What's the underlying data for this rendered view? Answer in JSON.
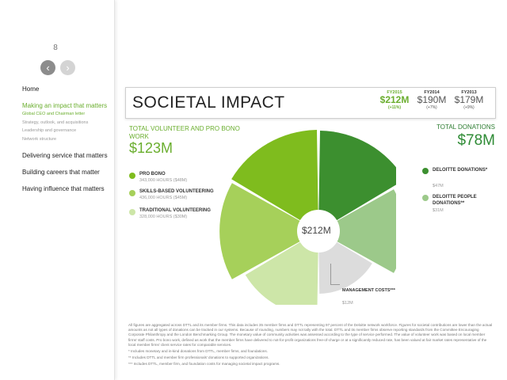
{
  "sidebar": {
    "page_number": "8",
    "prev_icon": "chevron-left-icon",
    "next_icon": "chevron-right-icon",
    "nav": {
      "home": "Home",
      "making_impact": "Making an impact that matters",
      "sub_items": [
        "Global CEO and Chairman letter",
        "Strategy, outlook, and acquisitions",
        "Leadership and governance",
        "Network structure"
      ],
      "delivering": "Delivering service that matters",
      "building": "Building careers that matter",
      "having": "Having influence that matters"
    }
  },
  "header": {
    "title": "SOCIETAL IMPACT",
    "years": [
      {
        "label": "FY2015",
        "value": "$212M",
        "change": "(+11%)"
      },
      {
        "label": "FY2014",
        "value": "$190M",
        "change": "(+7%)"
      },
      {
        "label": "FY2013",
        "value": "$179M",
        "change": "(+9%)"
      }
    ]
  },
  "volunteer": {
    "title": "TOTAL VOLUNTEER AND PRO BONO WORK",
    "amount": "$123M",
    "items": [
      {
        "name": "PRO BONO",
        "detail": "343,000 HOURS ($48M)",
        "color": "#7fbc1e"
      },
      {
        "name": "SKILLS-BASED VOLUNTEERING",
        "detail": "436,000 HOURS ($45M)",
        "color": "#a6d05a"
      },
      {
        "name": "TRADITIONAL VOLUNTEERING",
        "detail": "328,000 HOURS ($30M)",
        "color": "#cde6a8"
      }
    ]
  },
  "donations": {
    "title": "TOTAL DONATIONS",
    "amount": "$78M",
    "items": [
      {
        "name": "DELOITTE DONATIONS*",
        "detail": "$47M",
        "color": "#3c8f2f"
      },
      {
        "name": "DELOITTE PEOPLE DONATIONS**",
        "detail": "$31M",
        "color": "#9cc98a"
      }
    ]
  },
  "management": {
    "name": "MANAGEMENT COSTS***",
    "detail": "$12M",
    "color": "#dcdcdc"
  },
  "chart_data": {
    "type": "pie",
    "subtype": "polar-area",
    "total_label": "$212M",
    "slices": [
      {
        "name": "Deloitte donations*",
        "value": 47,
        "color": "#3c8f2f"
      },
      {
        "name": "Deloitte people donations**",
        "value": 31,
        "color": "#9cc98a"
      },
      {
        "name": "Management costs***",
        "value": 12,
        "color": "#dcdcdc"
      },
      {
        "name": "Traditional volunteering",
        "value": 30,
        "color": "#cde6a8"
      },
      {
        "name": "Skills-based volunteering",
        "value": 45,
        "color": "#a6d05a"
      },
      {
        "name": "Pro bono",
        "value": 48,
        "color": "#7fbc1e"
      }
    ]
  },
  "footnotes": [
    "All figures are aggregated across DTTL and its member firms. This data includes 35 member firms and DTTL representing 97 percent of the Deloitte network workforce. Figures for societal contributions are lower than the actual amounts as not all types of donations can be tracked in our systems. Because of rounding, numbers may not tally with the total. DTTL and its member firms observe reporting standards from the Committee Encouraging Corporate Philanthropy and the London Benchmarking Group. The monetary value of community activities was assessed according to the type of service performed. The value of volunteer work was based on local member firms' staff costs. Pro bono work, defined as work that the member firms have delivered to not-for-profit organizations free-of-charge or at a significantly reduced rate, has been valued at fair market rates representative of the local member firms' client service rates for comparable services.",
    "* Includes monetary and in-kind donations from DTTL, member firms, and foundations.",
    "** Includes DTTL and member firm professionals' donations to supported organizations.",
    "*** Includes DTTL, member firm, and foundation costs for managing societal impact programs."
  ]
}
